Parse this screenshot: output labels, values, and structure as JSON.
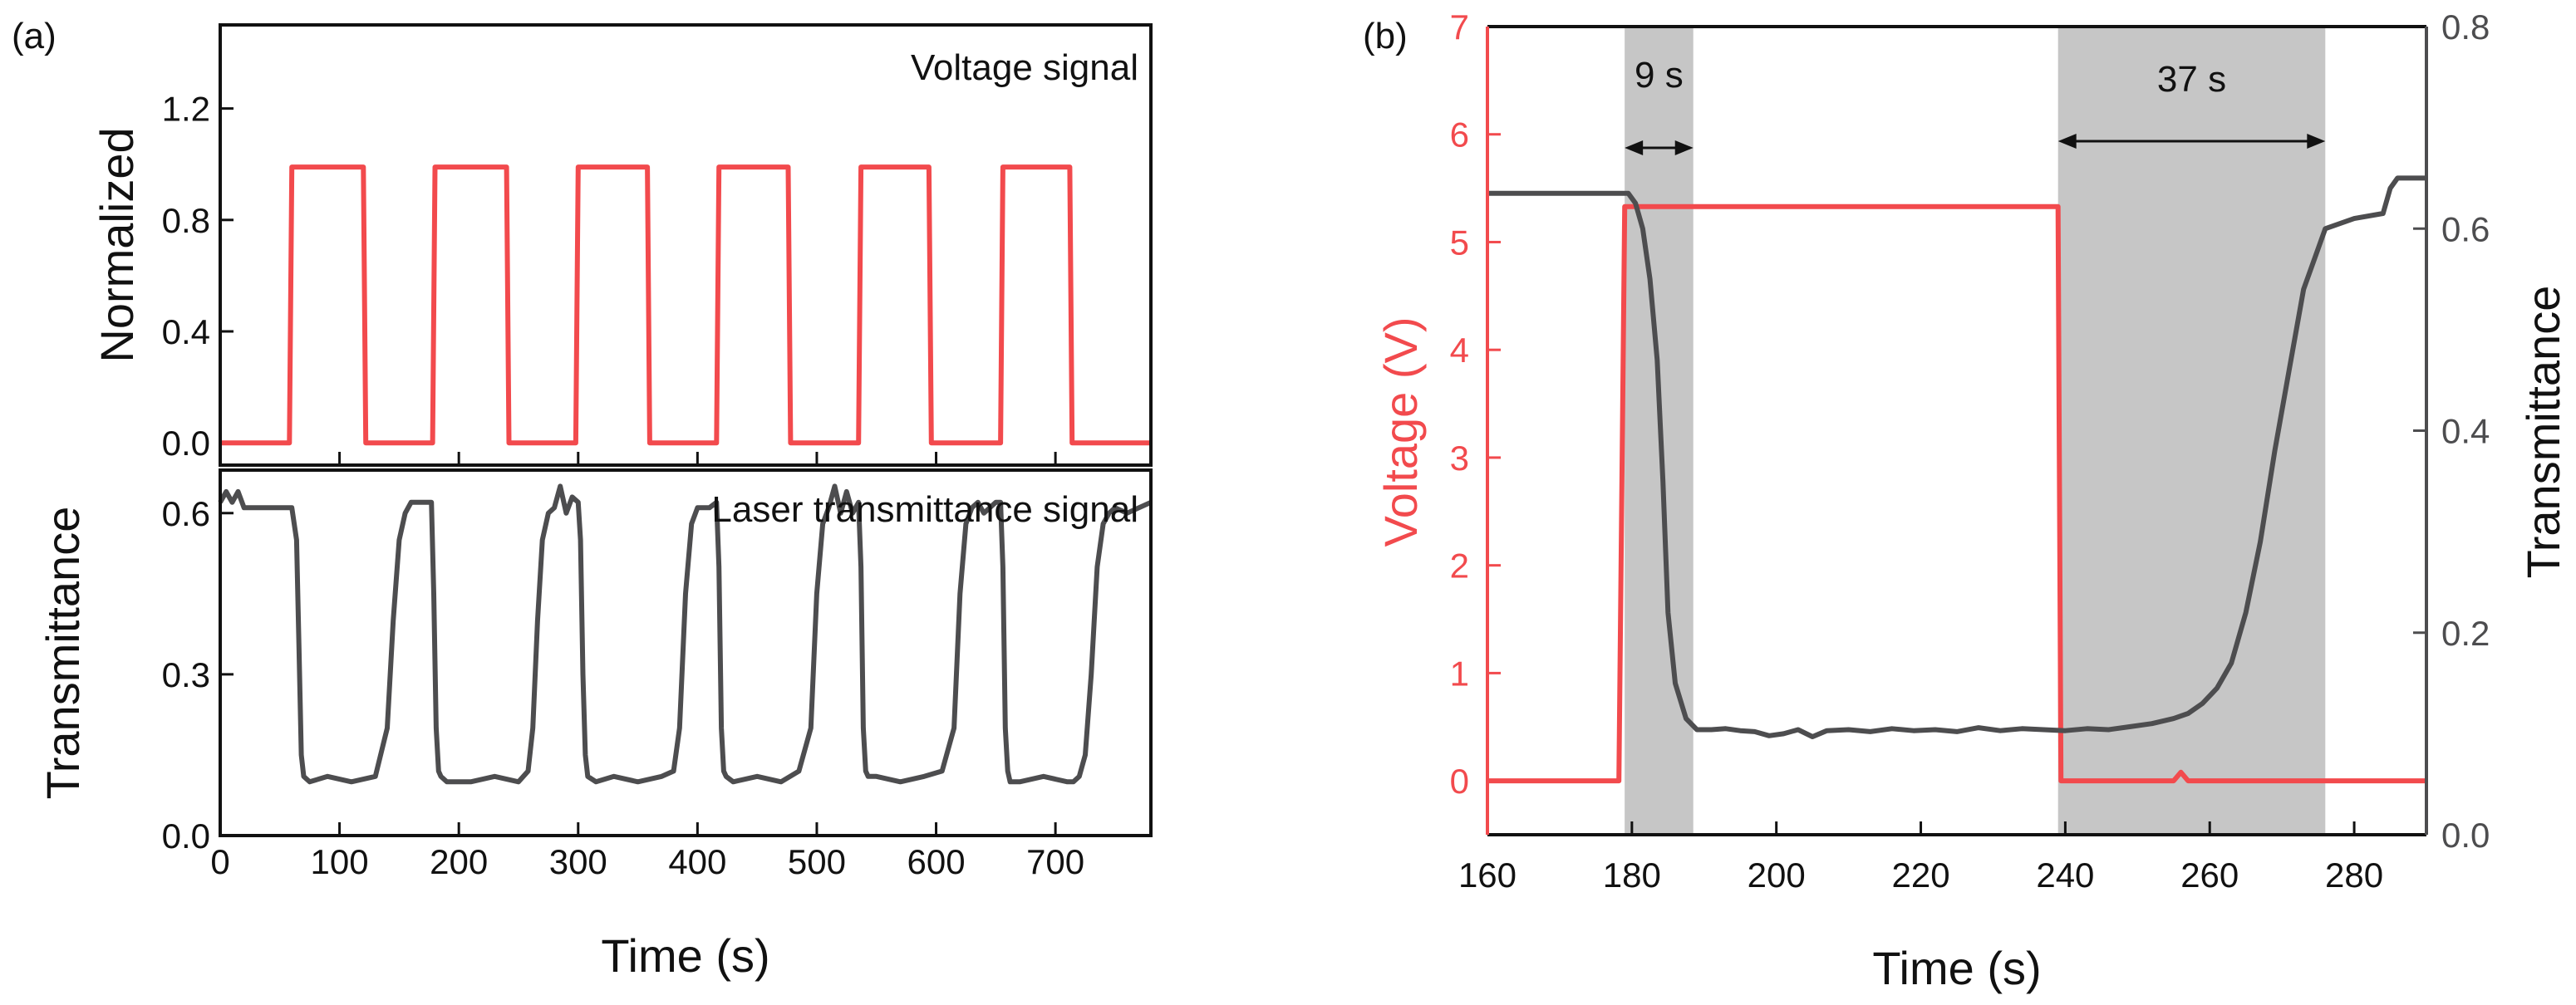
{
  "chart_data": [
    {
      "panel": "(a)",
      "type": "line",
      "xlabel": "Time (s)",
      "xlim": [
        0,
        780
      ],
      "xticks": [
        0,
        100,
        200,
        300,
        400,
        500,
        600,
        700
      ],
      "subplots": [
        {
          "id": "top",
          "ylabel": "Normalized",
          "ylim": [
            -0.08,
            1.5
          ],
          "yticks": [
            "0.0",
            "0.4",
            "0.8",
            "1.2"
          ],
          "annotation": "Voltage signal",
          "series": [
            {
              "name": "Voltage signal",
              "color": "#f24a4d",
              "x": [
                0,
                58,
                60,
                120,
                122,
                178,
                180,
                240,
                242,
                298,
                300,
                358,
                360,
                416,
                418,
                476,
                478,
                535,
                537,
                594,
                596,
                654,
                656,
                712,
                714,
                780
              ],
              "y": [
                0,
                0,
                0.99,
                0.99,
                0,
                0,
                0.99,
                0.99,
                0,
                0,
                0.99,
                0.99,
                0,
                0,
                0.99,
                0.99,
                0,
                0,
                0.99,
                0.99,
                0,
                0,
                0.99,
                0.99,
                0,
                0
              ]
            }
          ]
        },
        {
          "id": "bottom",
          "ylabel": "Transmittance",
          "ylim": [
            0,
            0.68
          ],
          "yticks": [
            "0.0",
            "0.3",
            "0.6"
          ],
          "annotation": "Laser transmittance signal",
          "series": [
            {
              "name": "Laser transmittance signal",
              "color": "#4d4d4f",
              "x": [
                0,
                5,
                10,
                15,
                20,
                40,
                60,
                64,
                66,
                68,
                70,
                75,
                90,
                110,
                130,
                140,
                145,
                150,
                155,
                160,
                170,
                177,
                179,
                181,
                183,
                185,
                190,
                210,
                230,
                250,
                258,
                262,
                266,
                270,
                275,
                280,
                285,
                290,
                295,
                300,
                302,
                304,
                306,
                308,
                315,
                330,
                350,
                370,
                380,
                385,
                390,
                395,
                400,
                410,
                416,
                418,
                420,
                422,
                424,
                430,
                450,
                470,
                485,
                495,
                500,
                505,
                510,
                515,
                520,
                525,
                530,
                535,
                537,
                539,
                541,
                543,
                550,
                570,
                590,
                605,
                615,
                620,
                625,
                630,
                635,
                640,
                650,
                654,
                656,
                658,
                660,
                662,
                670,
                690,
                710,
                715,
                720,
                725,
                730,
                735,
                740,
                745,
                750,
                760,
                770,
                780
              ],
              "y": [
                0.62,
                0.64,
                0.62,
                0.64,
                0.61,
                0.61,
                0.61,
                0.55,
                0.35,
                0.15,
                0.11,
                0.1,
                0.11,
                0.1,
                0.11,
                0.2,
                0.4,
                0.55,
                0.6,
                0.62,
                0.62,
                0.62,
                0.45,
                0.2,
                0.12,
                0.11,
                0.1,
                0.1,
                0.11,
                0.1,
                0.12,
                0.2,
                0.4,
                0.55,
                0.6,
                0.61,
                0.65,
                0.6,
                0.63,
                0.62,
                0.55,
                0.3,
                0.15,
                0.11,
                0.1,
                0.11,
                0.1,
                0.11,
                0.12,
                0.2,
                0.45,
                0.58,
                0.61,
                0.61,
                0.62,
                0.5,
                0.2,
                0.12,
                0.11,
                0.1,
                0.11,
                0.1,
                0.12,
                0.2,
                0.45,
                0.58,
                0.61,
                0.65,
                0.6,
                0.64,
                0.6,
                0.62,
                0.5,
                0.2,
                0.12,
                0.11,
                0.11,
                0.1,
                0.11,
                0.12,
                0.2,
                0.45,
                0.58,
                0.61,
                0.62,
                0.6,
                0.62,
                0.62,
                0.5,
                0.2,
                0.12,
                0.1,
                0.1,
                0.11,
                0.1,
                0.1,
                0.11,
                0.15,
                0.3,
                0.5,
                0.58,
                0.6,
                0.61,
                0.6,
                0.61,
                0.62
              ]
            }
          ]
        }
      ]
    },
    {
      "panel": "(b)",
      "type": "line",
      "xlabel": "Time (s)",
      "xlim": [
        160,
        290
      ],
      "xticks": [
        160,
        180,
        200,
        220,
        240,
        260,
        280
      ],
      "ylabel_left": "Voltage (V)",
      "ylim_left": [
        -0.5,
        7
      ],
      "yticks_left": [
        0,
        1,
        2,
        3,
        4,
        5,
        6,
        7
      ],
      "ylabel_right": "Transmittance",
      "ylim_right": [
        0,
        0.8
      ],
      "yticks_right": [
        "0.0",
        "0.2",
        "0.4",
        "0.6",
        "0.8"
      ],
      "shaded_regions": [
        {
          "x_start": 179,
          "x_end": 188.5,
          "label": "9 s"
        },
        {
          "x_start": 239,
          "x_end": 276,
          "label": "37 s"
        }
      ],
      "series": [
        {
          "name": "Voltage",
          "axis": "left",
          "color": "#f24a4d",
          "x": [
            160,
            178.2,
            179,
            239,
            239.4,
            255,
            256,
            257,
            290
          ],
          "y": [
            0,
            0,
            5.33,
            5.33,
            0,
            0,
            0.08,
            0,
            0
          ]
        },
        {
          "name": "Transmittance",
          "axis": "right",
          "color": "#4d4d4f",
          "x": [
            160,
            179.5,
            180.5,
            181.5,
            182.5,
            183.5,
            184.3,
            185,
            186,
            187.5,
            189,
            191,
            193,
            195,
            197,
            199,
            201,
            203,
            205,
            207,
            210,
            213,
            216,
            219,
            222,
            225,
            228,
            231,
            234,
            237,
            240,
            243,
            246,
            249,
            252,
            255,
            257,
            259,
            261,
            263,
            265,
            267,
            269,
            271,
            273,
            275,
            276,
            280,
            284,
            285,
            286,
            290
          ],
          "y": [
            0.635,
            0.635,
            0.625,
            0.6,
            0.55,
            0.47,
            0.35,
            0.22,
            0.15,
            0.115,
            0.104,
            0.104,
            0.105,
            0.103,
            0.102,
            0.098,
            0.1,
            0.104,
            0.097,
            0.103,
            0.104,
            0.102,
            0.105,
            0.103,
            0.104,
            0.102,
            0.106,
            0.103,
            0.105,
            0.104,
            0.103,
            0.105,
            0.104,
            0.107,
            0.11,
            0.115,
            0.12,
            0.13,
            0.145,
            0.17,
            0.22,
            0.29,
            0.38,
            0.46,
            0.54,
            0.58,
            0.6,
            0.61,
            0.615,
            0.64,
            0.65,
            0.65
          ]
        }
      ]
    }
  ]
}
